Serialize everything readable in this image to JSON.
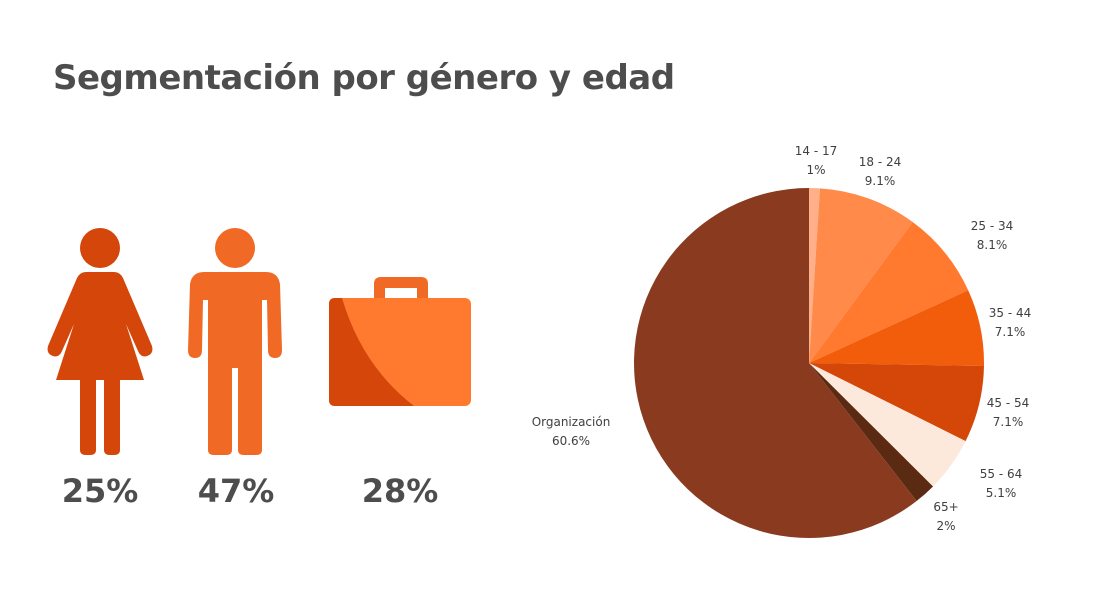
{
  "title": "Segmentación por género y edad",
  "segments": [
    {
      "icon": "woman-icon",
      "value": "25%",
      "color": "#d4460a"
    },
    {
      "icon": "man-icon",
      "value": "47%",
      "color": "#f06a26"
    },
    {
      "icon": "briefcase-icon",
      "value": "28%",
      "color": "#ff7a2e"
    }
  ],
  "chart_data": {
    "type": "pie",
    "start": "top, clockwise",
    "slices": [
      {
        "label": "14 - 17",
        "value": 1,
        "value_label": "1%",
        "color": "#ffb08a"
      },
      {
        "label": "18 - 24",
        "value": 9.1,
        "value_label": "9.1%",
        "color": "#ff8a4a"
      },
      {
        "label": "25 - 34",
        "value": 8.1,
        "value_label": "8.1%",
        "color": "#ff7a2e"
      },
      {
        "label": "35 - 44",
        "value": 7.1,
        "value_label": "7.1%",
        "color": "#f25d0c"
      },
      {
        "label": "45 - 54",
        "value": 7.1,
        "value_label": "7.1%",
        "color": "#d44708"
      },
      {
        "label": "55 - 64",
        "value": 5.1,
        "value_label": "5.1%",
        "color": "#fde8dc"
      },
      {
        "label": "65+",
        "value": 2,
        "value_label": "2%",
        "color": "#5a2b12"
      },
      {
        "label": "Organización",
        "value": 60.6,
        "value_label": "60.6%",
        "color": "#8a3a1f"
      }
    ]
  }
}
